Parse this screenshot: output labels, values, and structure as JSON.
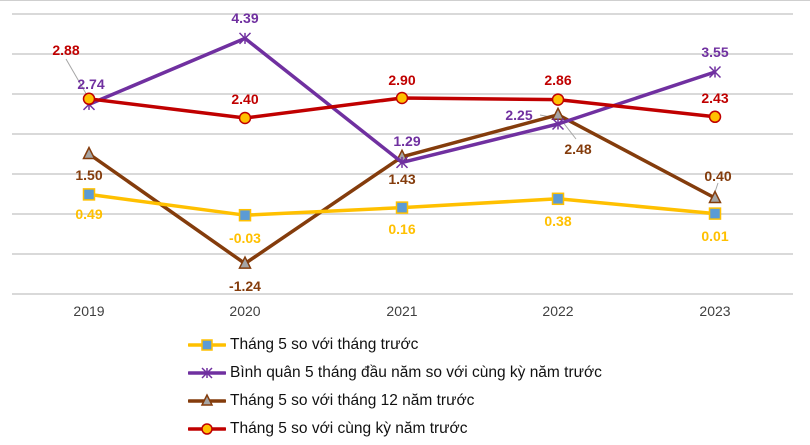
{
  "chart_data": {
    "type": "line",
    "categories": [
      "2019",
      "2020",
      "2021",
      "2022",
      "2023"
    ],
    "ylim": [
      -2,
      5
    ],
    "grid": true,
    "y_tick_labels_shown": false,
    "legend_position": "bottom",
    "series": [
      {
        "name": "Tháng 5 so với tháng trước",
        "values": [
          0.49,
          -0.03,
          0.16,
          0.38,
          0.01
        ],
        "color": "#FFC000",
        "marker": "square",
        "marker_color": "#5B9BD5"
      },
      {
        "name": "Bình quân 5 tháng đầu năm so với cùng kỳ năm trước",
        "values": [
          2.74,
          4.39,
          1.29,
          2.25,
          3.55
        ],
        "color": "#7030A0",
        "marker": "star",
        "marker_color": "#7030A0"
      },
      {
        "name": "Tháng 5 so với tháng 12 năm trước",
        "values": [
          1.5,
          -1.24,
          1.43,
          2.48,
          0.4
        ],
        "color": "#843C0C",
        "marker": "triangle",
        "marker_color": "#A5A5A5"
      },
      {
        "name": "Tháng 5 so với cùng kỳ năm trước",
        "values": [
          2.88,
          2.4,
          2.9,
          2.86,
          2.43
        ],
        "color": "#C00000",
        "marker": "circle",
        "marker_color": "#FFC000"
      }
    ],
    "data_labels": [
      [
        "0.49",
        "-0.03",
        "0.16",
        "0.38",
        "0.01"
      ],
      [
        "2.74",
        "4.39",
        "1.29",
        "2.25",
        "3.55"
      ],
      [
        "1.50",
        "-1.24",
        "1.43",
        "2.48",
        "0.40"
      ],
      [
        "2.88",
        "2.40",
        "2.90",
        "2.86",
        "2.43"
      ]
    ],
    "label_colors": [
      "#FFC000",
      "#7030A0",
      "#843C0C",
      "#C00000"
    ]
  }
}
